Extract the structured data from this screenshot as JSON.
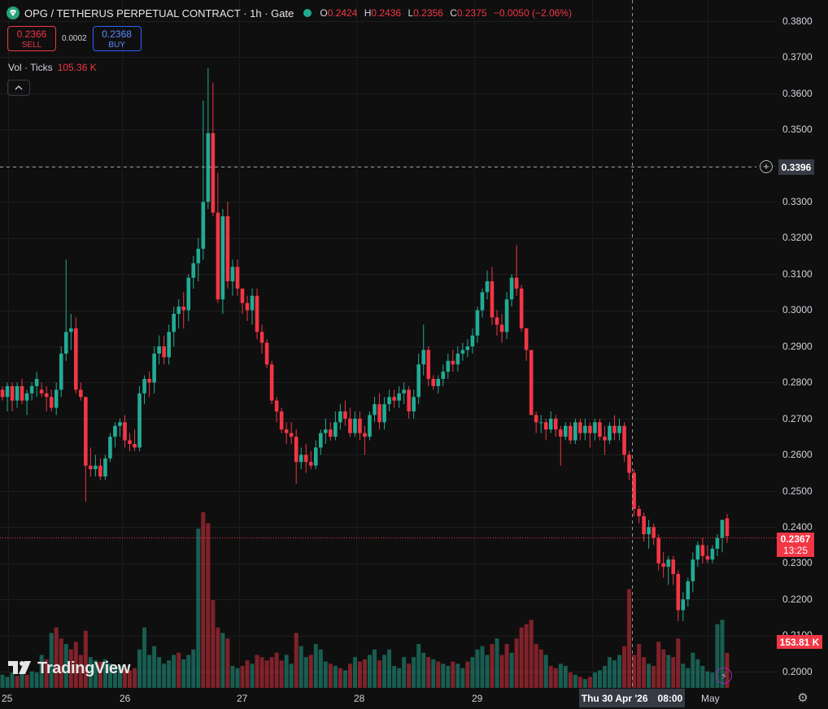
{
  "header": {
    "title": "OPG / TETHERUS PERPETUAL CONTRACT · 1h · Gate",
    "symbol_icon": "tether-diamond-icon",
    "status_icon": "market-open-dot-icon",
    "ohlc": {
      "o_label": "O",
      "o": "0.2424",
      "h_label": "H",
      "h": "0.2436",
      "l_label": "L",
      "l": "0.2356",
      "c_label": "C",
      "c": "0.2375",
      "change": "−0.0050 (−2.06%)"
    }
  },
  "trade": {
    "sell_price": "0.2366",
    "sell_label": "SELL",
    "spread": "0.0002",
    "buy_price": "0.2368",
    "buy_label": "BUY"
  },
  "volume_legend": {
    "label": "Vol · Ticks",
    "value": "105.36 K"
  },
  "collapse_icon": "chevron-up-icon",
  "price_axis": {
    "ticks": [
      "0.3800",
      "0.3700",
      "0.3600",
      "0.3500",
      "0.3300",
      "0.3200",
      "0.3100",
      "0.3000",
      "0.2900",
      "0.2800",
      "0.2700",
      "0.2600",
      "0.2500",
      "0.2400",
      "0.2300",
      "0.2200",
      "0.2100",
      "0.2000"
    ]
  },
  "time_axis": {
    "ticks": [
      "25",
      "26",
      "27",
      "28",
      "29",
      "May"
    ]
  },
  "crosshair": {
    "price": "0.3396",
    "date": "Thu 30 Apr '26",
    "time": "08:00"
  },
  "last_price": {
    "price": "0.2367",
    "countdown": "13:25"
  },
  "last_volume": "153.81 K",
  "logo_text": "TradingView",
  "colors": {
    "up": "#22ab94",
    "down": "#f23645",
    "background": "#0f0f0f"
  },
  "chart_data": {
    "type": "candlestick",
    "interval": "1h",
    "ylim": [
      0.1985,
      0.3815
    ],
    "candles": [
      [
        0.278,
        0.279,
        0.275,
        0.276
      ],
      [
        0.276,
        0.28,
        0.272,
        0.279
      ],
      [
        0.279,
        0.28,
        0.272,
        0.275
      ],
      [
        0.275,
        0.28,
        0.273,
        0.279
      ],
      [
        0.279,
        0.281,
        0.274,
        0.275
      ],
      [
        0.275,
        0.278,
        0.271,
        0.277
      ],
      [
        0.277,
        0.28,
        0.275,
        0.279
      ],
      [
        0.279,
        0.283,
        0.276,
        0.281
      ],
      [
        0.278,
        0.28,
        0.276,
        0.277
      ],
      [
        0.277,
        0.279,
        0.272,
        0.276
      ],
      [
        0.276,
        0.278,
        0.272,
        0.273
      ],
      [
        0.273,
        0.28,
        0.271,
        0.278
      ],
      [
        0.278,
        0.29,
        0.276,
        0.288
      ],
      [
        0.288,
        0.314,
        0.286,
        0.294
      ],
      [
        0.294,
        0.299,
        0.289,
        0.295
      ],
      [
        0.295,
        0.298,
        0.277,
        0.278
      ],
      [
        0.278,
        0.28,
        0.275,
        0.276
      ],
      [
        0.276,
        0.276,
        0.247,
        0.257
      ],
      [
        0.257,
        0.262,
        0.254,
        0.256
      ],
      [
        0.256,
        0.26,
        0.254,
        0.257
      ],
      [
        0.257,
        0.259,
        0.253,
        0.254
      ],
      [
        0.254,
        0.26,
        0.253,
        0.259
      ],
      [
        0.259,
        0.266,
        0.258,
        0.265
      ],
      [
        0.265,
        0.269,
        0.262,
        0.268
      ],
      [
        0.268,
        0.27,
        0.265,
        0.269
      ],
      [
        0.269,
        0.271,
        0.262,
        0.264
      ],
      [
        0.264,
        0.266,
        0.261,
        0.263
      ],
      [
        0.263,
        0.267,
        0.261,
        0.262
      ],
      [
        0.262,
        0.279,
        0.261,
        0.277
      ],
      [
        0.277,
        0.282,
        0.274,
        0.281
      ],
      [
        0.281,
        0.283,
        0.276,
        0.28
      ],
      [
        0.28,
        0.29,
        0.277,
        0.288
      ],
      [
        0.288,
        0.293,
        0.285,
        0.29
      ],
      [
        0.29,
        0.293,
        0.285,
        0.287
      ],
      [
        0.287,
        0.296,
        0.285,
        0.294
      ],
      [
        0.294,
        0.301,
        0.29,
        0.299
      ],
      [
        0.299,
        0.303,
        0.295,
        0.301
      ],
      [
        0.301,
        0.305,
        0.295,
        0.3
      ],
      [
        0.3,
        0.31,
        0.297,
        0.309
      ],
      [
        0.309,
        0.315,
        0.306,
        0.313
      ],
      [
        0.313,
        0.32,
        0.308,
        0.317
      ],
      [
        0.317,
        0.358,
        0.314,
        0.33
      ],
      [
        0.33,
        0.367,
        0.328,
        0.349
      ],
      [
        0.349,
        0.363,
        0.326,
        0.327
      ],
      [
        0.327,
        0.338,
        0.302,
        0.303
      ],
      [
        0.303,
        0.328,
        0.299,
        0.326
      ],
      [
        0.326,
        0.33,
        0.306,
        0.308
      ],
      [
        0.308,
        0.314,
        0.304,
        0.312
      ],
      [
        0.312,
        0.314,
        0.304,
        0.306
      ],
      [
        0.306,
        0.306,
        0.299,
        0.302
      ],
      [
        0.302,
        0.304,
        0.297,
        0.3
      ],
      [
        0.3,
        0.306,
        0.296,
        0.304
      ],
      [
        0.304,
        0.306,
        0.292,
        0.294
      ],
      [
        0.294,
        0.296,
        0.288,
        0.291
      ],
      [
        0.291,
        0.292,
        0.284,
        0.285
      ],
      [
        0.285,
        0.286,
        0.274,
        0.275
      ],
      [
        0.275,
        0.276,
        0.269,
        0.272
      ],
      [
        0.272,
        0.273,
        0.266,
        0.267
      ],
      [
        0.267,
        0.269,
        0.263,
        0.266
      ],
      [
        0.266,
        0.269,
        0.263,
        0.265
      ],
      [
        0.265,
        0.267,
        0.252,
        0.258
      ],
      [
        0.258,
        0.262,
        0.256,
        0.26
      ],
      [
        0.26,
        0.263,
        0.255,
        0.258
      ],
      [
        0.258,
        0.261,
        0.256,
        0.257
      ],
      [
        0.257,
        0.264,
        0.256,
        0.262
      ],
      [
        0.262,
        0.267,
        0.26,
        0.266
      ],
      [
        0.266,
        0.27,
        0.263,
        0.267
      ],
      [
        0.267,
        0.269,
        0.264,
        0.265
      ],
      [
        0.265,
        0.272,
        0.264,
        0.269
      ],
      [
        0.269,
        0.274,
        0.267,
        0.272
      ],
      [
        0.272,
        0.275,
        0.268,
        0.27
      ],
      [
        0.27,
        0.273,
        0.265,
        0.266
      ],
      [
        0.266,
        0.272,
        0.265,
        0.27
      ],
      [
        0.27,
        0.272,
        0.264,
        0.266
      ],
      [
        0.266,
        0.268,
        0.26,
        0.265
      ],
      [
        0.265,
        0.272,
        0.264,
        0.271
      ],
      [
        0.271,
        0.276,
        0.269,
        0.274
      ],
      [
        0.274,
        0.277,
        0.267,
        0.269
      ],
      [
        0.269,
        0.276,
        0.267,
        0.274
      ],
      [
        0.274,
        0.278,
        0.272,
        0.276
      ],
      [
        0.276,
        0.278,
        0.273,
        0.275
      ],
      [
        0.275,
        0.279,
        0.273,
        0.277
      ],
      [
        0.277,
        0.28,
        0.274,
        0.278
      ],
      [
        0.278,
        0.279,
        0.27,
        0.272
      ],
      [
        0.272,
        0.278,
        0.27,
        0.276
      ],
      [
        0.276,
        0.288,
        0.274,
        0.285
      ],
      [
        0.285,
        0.296,
        0.282,
        0.289
      ],
      [
        0.289,
        0.29,
        0.279,
        0.281
      ],
      [
        0.281,
        0.282,
        0.278,
        0.279
      ],
      [
        0.279,
        0.282,
        0.277,
        0.281
      ],
      [
        0.281,
        0.285,
        0.279,
        0.283
      ],
      [
        0.283,
        0.288,
        0.281,
        0.286
      ],
      [
        0.286,
        0.289,
        0.283,
        0.285
      ],
      [
        0.285,
        0.29,
        0.283,
        0.288
      ],
      [
        0.288,
        0.291,
        0.286,
        0.289
      ],
      [
        0.289,
        0.292,
        0.287,
        0.29
      ],
      [
        0.29,
        0.295,
        0.288,
        0.293
      ],
      [
        0.293,
        0.301,
        0.291,
        0.3
      ],
      [
        0.3,
        0.306,
        0.298,
        0.305
      ],
      [
        0.305,
        0.311,
        0.303,
        0.308
      ],
      [
        0.308,
        0.312,
        0.296,
        0.298
      ],
      [
        0.298,
        0.3,
        0.293,
        0.296
      ],
      [
        0.296,
        0.299,
        0.291,
        0.294
      ],
      [
        0.294,
        0.305,
        0.292,
        0.303
      ],
      [
        0.303,
        0.31,
        0.301,
        0.309
      ],
      [
        0.309,
        0.318,
        0.304,
        0.306
      ],
      [
        0.306,
        0.307,
        0.294,
        0.295
      ],
      [
        0.295,
        0.295,
        0.286,
        0.289
      ],
      [
        0.289,
        0.289,
        0.271,
        0.271
      ],
      [
        0.271,
        0.272,
        0.266,
        0.269
      ],
      [
        0.269,
        0.271,
        0.266,
        0.269
      ],
      [
        0.269,
        0.27,
        0.264,
        0.267
      ],
      [
        0.267,
        0.272,
        0.266,
        0.27
      ],
      [
        0.27,
        0.271,
        0.265,
        0.267
      ],
      [
        0.267,
        0.268,
        0.257,
        0.265
      ],
      [
        0.265,
        0.269,
        0.264,
        0.268
      ],
      [
        0.268,
        0.269,
        0.263,
        0.264
      ],
      [
        0.264,
        0.27,
        0.263,
        0.269
      ],
      [
        0.269,
        0.27,
        0.264,
        0.266
      ],
      [
        0.266,
        0.27,
        0.264,
        0.268
      ],
      [
        0.268,
        0.269,
        0.262,
        0.266
      ],
      [
        0.266,
        0.27,
        0.264,
        0.269
      ],
      [
        0.269,
        0.27,
        0.264,
        0.265
      ],
      [
        0.265,
        0.268,
        0.26,
        0.264
      ],
      [
        0.264,
        0.269,
        0.263,
        0.268
      ],
      [
        0.268,
        0.271,
        0.264,
        0.266
      ],
      [
        0.266,
        0.27,
        0.264,
        0.268
      ],
      [
        0.268,
        0.269,
        0.258,
        0.26
      ],
      [
        0.26,
        0.261,
        0.253,
        0.255
      ],
      [
        0.255,
        0.256,
        0.243,
        0.245
      ],
      [
        0.245,
        0.246,
        0.241,
        0.243
      ],
      [
        0.243,
        0.244,
        0.236,
        0.238
      ],
      [
        0.238,
        0.242,
        0.234,
        0.24
      ],
      [
        0.24,
        0.241,
        0.235,
        0.237
      ],
      [
        0.237,
        0.238,
        0.228,
        0.23
      ],
      [
        0.23,
        0.233,
        0.226,
        0.229
      ],
      [
        0.229,
        0.232,
        0.224,
        0.231
      ],
      [
        0.231,
        0.232,
        0.224,
        0.227
      ],
      [
        0.227,
        0.228,
        0.214,
        0.217
      ],
      [
        0.217,
        0.222,
        0.214,
        0.22
      ],
      [
        0.22,
        0.226,
        0.218,
        0.225
      ],
      [
        0.225,
        0.233,
        0.222,
        0.231
      ],
      [
        0.231,
        0.236,
        0.229,
        0.235
      ],
      [
        0.235,
        0.237,
        0.23,
        0.232
      ],
      [
        0.232,
        0.235,
        0.23,
        0.231
      ],
      [
        0.231,
        0.235,
        0.23,
        0.234
      ],
      [
        0.234,
        0.238,
        0.232,
        0.237
      ],
      [
        0.237,
        0.241,
        0.233,
        0.242
      ],
      [
        0.2424,
        0.2436,
        0.2356,
        0.2375
      ]
    ],
    "volumes": [
      [
        12,
        1
      ],
      [
        10,
        1
      ],
      [
        14,
        1
      ],
      [
        11,
        0
      ],
      [
        13,
        1
      ],
      [
        12,
        0
      ],
      [
        15,
        1
      ],
      [
        14,
        1
      ],
      [
        30,
        1
      ],
      [
        26,
        0
      ],
      [
        50,
        1
      ],
      [
        55,
        0
      ],
      [
        45,
        0
      ],
      [
        40,
        1
      ],
      [
        35,
        0
      ],
      [
        42,
        0
      ],
      [
        30,
        0
      ],
      [
        52,
        0
      ],
      [
        28,
        1
      ],
      [
        25,
        1
      ],
      [
        24,
        0
      ],
      [
        26,
        1
      ],
      [
        22,
        1
      ],
      [
        20,
        1
      ],
      [
        20,
        1
      ],
      [
        18,
        0
      ],
      [
        16,
        0
      ],
      [
        18,
        0
      ],
      [
        35,
        1
      ],
      [
        55,
        1
      ],
      [
        30,
        1
      ],
      [
        38,
        1
      ],
      [
        28,
        1
      ],
      [
        22,
        1
      ],
      [
        25,
        1
      ],
      [
        30,
        1
      ],
      [
        32,
        0
      ],
      [
        26,
        1
      ],
      [
        30,
        1
      ],
      [
        35,
        1
      ],
      [
        145,
        1
      ],
      [
        160,
        0
      ],
      [
        150,
        0
      ],
      [
        80,
        0
      ],
      [
        55,
        0
      ],
      [
        50,
        1
      ],
      [
        45,
        0
      ],
      [
        20,
        1
      ],
      [
        18,
        1
      ],
      [
        20,
        0
      ],
      [
        25,
        0
      ],
      [
        22,
        1
      ],
      [
        30,
        0
      ],
      [
        28,
        0
      ],
      [
        25,
        0
      ],
      [
        28,
        0
      ],
      [
        32,
        0
      ],
      [
        25,
        0
      ],
      [
        30,
        1
      ],
      [
        22,
        1
      ],
      [
        50,
        0
      ],
      [
        38,
        1
      ],
      [
        28,
        1
      ],
      [
        30,
        0
      ],
      [
        40,
        1
      ],
      [
        35,
        1
      ],
      [
        24,
        1
      ],
      [
        22,
        0
      ],
      [
        20,
        1
      ],
      [
        18,
        0
      ],
      [
        16,
        1
      ],
      [
        22,
        0
      ],
      [
        28,
        1
      ],
      [
        24,
        0
      ],
      [
        26,
        0
      ],
      [
        30,
        1
      ],
      [
        35,
        1
      ],
      [
        25,
        0
      ],
      [
        30,
        1
      ],
      [
        35,
        1
      ],
      [
        20,
        1
      ],
      [
        18,
        1
      ],
      [
        28,
        1
      ],
      [
        22,
        0
      ],
      [
        28,
        1
      ],
      [
        40,
        1
      ],
      [
        32,
        1
      ],
      [
        28,
        0
      ],
      [
        26,
        1
      ],
      [
        24,
        0
      ],
      [
        22,
        1
      ],
      [
        20,
        1
      ],
      [
        24,
        0
      ],
      [
        22,
        1
      ],
      [
        18,
        1
      ],
      [
        24,
        0
      ],
      [
        28,
        1
      ],
      [
        35,
        1
      ],
      [
        38,
        1
      ],
      [
        30,
        1
      ],
      [
        40,
        0
      ],
      [
        45,
        1
      ],
      [
        30,
        0
      ],
      [
        40,
        0
      ],
      [
        32,
        1
      ],
      [
        45,
        0
      ],
      [
        55,
        0
      ],
      [
        58,
        0
      ],
      [
        62,
        0
      ],
      [
        40,
        0
      ],
      [
        35,
        0
      ],
      [
        30,
        1
      ],
      [
        20,
        0
      ],
      [
        18,
        0
      ],
      [
        22,
        1
      ],
      [
        20,
        1
      ],
      [
        14,
        0
      ],
      [
        12,
        1
      ],
      [
        10,
        0
      ],
      [
        8,
        1
      ],
      [
        10,
        0
      ],
      [
        14,
        1
      ],
      [
        16,
        1
      ],
      [
        20,
        1
      ],
      [
        28,
        1
      ],
      [
        25,
        1
      ],
      [
        30,
        1
      ],
      [
        38,
        0
      ],
      [
        90,
        0
      ],
      [
        30,
        0
      ],
      [
        40,
        0
      ],
      [
        28,
        0
      ],
      [
        22,
        1
      ],
      [
        20,
        0
      ],
      [
        42,
        0
      ],
      [
        35,
        0
      ],
      [
        30,
        1
      ],
      [
        28,
        0
      ],
      [
        45,
        0
      ],
      [
        22,
        1
      ],
      [
        18,
        1
      ],
      [
        32,
        1
      ],
      [
        26,
        1
      ],
      [
        20,
        1
      ],
      [
        15,
        1
      ],
      [
        14,
        1
      ],
      [
        58,
        1
      ],
      [
        62,
        1
      ],
      [
        32,
        0
      ]
    ]
  }
}
